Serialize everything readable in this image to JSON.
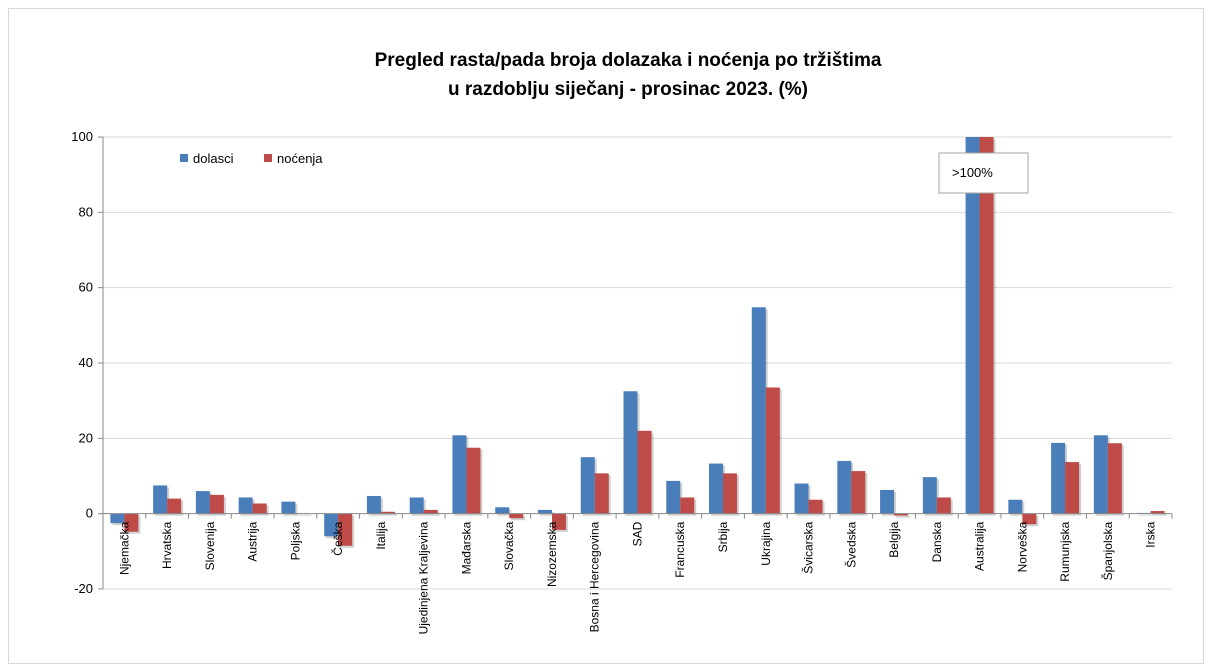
{
  "chart_data": {
    "type": "bar",
    "title": "Pregled rasta/pada broja dolazaka i noćenja po tržištima",
    "subtitle": "u razdoblju siječanj - prosinac 2023. (%)",
    "ylim": [
      -20,
      100
    ],
    "yticks": [
      -20,
      0,
      20,
      40,
      60,
      80,
      100
    ],
    "grid": true,
    "legend_position": "top-left",
    "categories": [
      "Njemačka",
      "Hrvatska",
      "Slovenija",
      "Austrija",
      "Poljska",
      "Češka",
      "Italija",
      "Ujedinjena Kraljevina",
      "Mađarska",
      "Slovačka",
      "Nizozemska",
      "Bosna i Hercegovina",
      "SAD",
      "Francuska",
      "Srbija",
      "Ukrajina",
      "Švicarska",
      "Švedska",
      "Belgija",
      "Danska",
      "Australija",
      "Norveška",
      "Rumunjska",
      "Španjolska",
      "Irska"
    ],
    "series": [
      {
        "name": "dolasci",
        "color": "#4a7ebb",
        "values": [
          -2.5,
          7.5,
          6.0,
          4.3,
          3.2,
          -6.0,
          4.7,
          4.3,
          20.8,
          1.7,
          1.0,
          15.0,
          32.5,
          8.7,
          13.3,
          54.8,
          8.0,
          14.0,
          6.3,
          9.7,
          100,
          3.7,
          18.8,
          20.8,
          0.2
        ]
      },
      {
        "name": "noćenja",
        "color": "#be4b48",
        "values": [
          -4.8,
          4.0,
          5.0,
          2.7,
          0.1,
          -8.5,
          0.5,
          1.0,
          17.5,
          -1.2,
          -4.3,
          10.7,
          22.0,
          4.3,
          10.7,
          33.5,
          3.7,
          11.3,
          -0.5,
          4.3,
          100,
          -2.8,
          13.7,
          18.7,
          0.7
        ]
      }
    ],
    "annotation": ">100%"
  }
}
